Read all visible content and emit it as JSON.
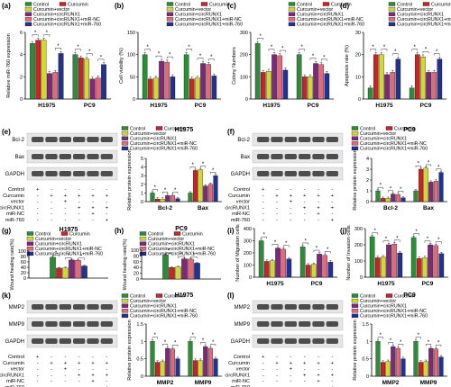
{
  "colors": {
    "Control": "#2e8b3a",
    "Curcumin": "#c0272d",
    "Curcumin+vector": "#cfd83a",
    "Curcumin+circRUNX1": "#7a2a76",
    "Curcumin+circRUNX1+miR-NC": "#e06a7a",
    "Curcumin+circRUNX1+miR-760": "#23318f"
  },
  "legend_names": [
    "Control",
    "Curcumin",
    "Curcumin+vector",
    "Curcumin+circRUNX1",
    "Curcumin+circRUNX1+miR-NC",
    "Curcumin+circRUNX1+miR-760"
  ],
  "treatment_rows": [
    "Control",
    "Curcumin",
    "vector",
    "circRUNX1",
    "miR-NC",
    "miR-760"
  ],
  "treatment_marks": [
    [
      "+",
      "-",
      "-",
      "-",
      "-",
      "-"
    ],
    [
      "-",
      "+",
      "+",
      "+",
      "+",
      "+"
    ],
    [
      "-",
      "-",
      "+",
      "-",
      "-",
      "-"
    ],
    [
      "-",
      "-",
      "-",
      "+",
      "+",
      "+"
    ],
    [
      "-",
      "-",
      "-",
      "-",
      "+",
      "-"
    ],
    [
      "-",
      "-",
      "-",
      "-",
      "-",
      "+"
    ]
  ],
  "chart_data": [
    {
      "panel": "(a)",
      "type": "bar",
      "title": "",
      "ylabel": "Relative miR-760 expression",
      "xlabel": "",
      "categories": [
        "H1975",
        "PC9"
      ],
      "ylim": [
        0,
        6
      ],
      "yticks": [
        0,
        2,
        4,
        6
      ],
      "series": [
        {
          "name": "Control",
          "values": [
            5.0,
            4.0
          ]
        },
        {
          "name": "Curcumin",
          "values": [
            5.3,
            3.7
          ]
        },
        {
          "name": "Curcumin+vector",
          "values": [
            5.3,
            3.6
          ]
        },
        {
          "name": "Curcumin+circRUNX1",
          "values": [
            2.3,
            1.8
          ]
        },
        {
          "name": "Curcumin+circRUNX1+miR-NC",
          "values": [
            2.4,
            1.9
          ]
        },
        {
          "name": "Curcumin+circRUNX1+miR-760",
          "values": [
            4.1,
            3.1
          ]
        }
      ]
    },
    {
      "panel": "(b)",
      "type": "bar",
      "title": "",
      "ylabel": "Cell viability (%)",
      "xlabel": "",
      "categories": [
        "H1975",
        "PC9"
      ],
      "ylim": [
        0,
        150
      ],
      "yticks": [
        0,
        50,
        100,
        150
      ],
      "series": [
        {
          "name": "Control",
          "values": [
            100,
            100
          ]
        },
        {
          "name": "Curcumin",
          "values": [
            45,
            45
          ]
        },
        {
          "name": "Curcumin+vector",
          "values": [
            47,
            47
          ]
        },
        {
          "name": "Curcumin+circRUNX1",
          "values": [
            85,
            80
          ]
        },
        {
          "name": "Curcumin+circRUNX1+miR-NC",
          "values": [
            83,
            78
          ]
        },
        {
          "name": "Curcumin+circRUNX1+miR-760",
          "values": [
            50,
            52
          ]
        }
      ]
    },
    {
      "panel": "(c)",
      "type": "bar",
      "title": "",
      "ylabel": "Colony Numbers",
      "xlabel": "",
      "categories": [
        "H1975",
        "PC9"
      ],
      "ylim": [
        0,
        300
      ],
      "yticks": [
        0,
        100,
        200,
        300
      ],
      "series": [
        {
          "name": "Control",
          "values": [
            250,
            200
          ]
        },
        {
          "name": "Curcumin",
          "values": [
            120,
            100
          ]
        },
        {
          "name": "Curcumin+vector",
          "values": [
            125,
            100
          ]
        },
        {
          "name": "Curcumin+circRUNX1",
          "values": [
            200,
            160
          ]
        },
        {
          "name": "Curcumin+circRUNX1+miR-NC",
          "values": [
            195,
            155
          ]
        },
        {
          "name": "Curcumin+circRUNX1+miR-760",
          "values": [
            130,
            115
          ]
        }
      ]
    },
    {
      "panel": "(d)",
      "type": "bar",
      "title": "",
      "ylabel": "Apoptosis rate (%)",
      "xlabel": "",
      "categories": [
        "H1975",
        "PC9"
      ],
      "ylim": [
        0,
        30
      ],
      "yticks": [
        0,
        10,
        20,
        30
      ],
      "series": [
        {
          "name": "Control",
          "values": [
            5,
            5
          ]
        },
        {
          "name": "Curcumin",
          "values": [
            20,
            20
          ]
        },
        {
          "name": "Curcumin+vector",
          "values": [
            20,
            19
          ]
        },
        {
          "name": "Curcumin+circRUNX1",
          "values": [
            11,
            12
          ]
        },
        {
          "name": "Curcumin+circRUNX1+miR-NC",
          "values": [
            12,
            12
          ]
        },
        {
          "name": "Curcumin+circRUNX1+miR-760",
          "values": [
            18,
            18
          ]
        }
      ]
    },
    {
      "panel": "(e)",
      "type": "bar",
      "title": "H1975",
      "ylabel": "Relative protein expression",
      "xlabel": "",
      "categories": [
        "Bcl-2",
        "Bax"
      ],
      "ylim": [
        0,
        5
      ],
      "yticks": [
        0,
        1,
        2,
        3,
        4,
        5
      ],
      "series": [
        {
          "name": "Control",
          "values": [
            1.0,
            1.0
          ]
        },
        {
          "name": "Curcumin",
          "values": [
            0.3,
            3.6
          ]
        },
        {
          "name": "Curcumin+vector",
          "values": [
            0.3,
            3.7
          ]
        },
        {
          "name": "Curcumin+circRUNX1",
          "values": [
            0.7,
            1.8
          ]
        },
        {
          "name": "Curcumin+circRUNX1+miR-NC",
          "values": [
            0.7,
            2.0
          ]
        },
        {
          "name": "Curcumin+circRUNX1+miR-760",
          "values": [
            0.35,
            3.0
          ]
        }
      ]
    },
    {
      "panel": "(f)",
      "type": "bar",
      "title": "PC9",
      "ylabel": "Relative protein expression",
      "xlabel": "",
      "categories": [
        "Bcl-2",
        "Bax"
      ],
      "ylim": [
        0,
        4
      ],
      "yticks": [
        0,
        1,
        2,
        3,
        4
      ],
      "series": [
        {
          "name": "Control",
          "values": [
            1.0,
            1.0
          ]
        },
        {
          "name": "Curcumin",
          "values": [
            0.3,
            3.0
          ]
        },
        {
          "name": "Curcumin+vector",
          "values": [
            0.3,
            3.1
          ]
        },
        {
          "name": "Curcumin+circRUNX1",
          "values": [
            0.7,
            1.8
          ]
        },
        {
          "name": "Curcumin+circRUNX1+miR-NC",
          "values": [
            0.65,
            1.9
          ]
        },
        {
          "name": "Curcumin+circRUNX1+miR-760",
          "values": [
            0.35,
            2.7
          ]
        }
      ]
    },
    {
      "panel": "(g)",
      "type": "bar",
      "title": "H1975",
      "ylabel": "Wound healing rate(%)",
      "xlabel": "",
      "categories": [
        ""
      ],
      "ylim": [
        0,
        100
      ],
      "yticks": [
        0,
        20,
        40,
        60,
        80,
        100
      ],
      "series": [
        {
          "name": "Control",
          "values": [
            77
          ]
        },
        {
          "name": "Curcumin",
          "values": [
            37
          ]
        },
        {
          "name": "Curcumin+vector",
          "values": [
            38
          ]
        },
        {
          "name": "Curcumin+circRUNX1",
          "values": [
            67
          ]
        },
        {
          "name": "Curcumin+circRUNX1+miR-NC",
          "values": [
            66
          ]
        },
        {
          "name": "Curcumin+circRUNX1+miR-760",
          "values": [
            45
          ]
        }
      ]
    },
    {
      "panel": "(h)",
      "type": "bar",
      "title": "PC9",
      "ylabel": "Wound healing rate(%)",
      "xlabel": "",
      "categories": [
        ""
      ],
      "ylim": [
        0,
        100
      ],
      "yticks": [
        0,
        20,
        40,
        60,
        80,
        100
      ],
      "series": [
        {
          "name": "Control",
          "values": [
            83
          ]
        },
        {
          "name": "Curcumin",
          "values": [
            40
          ]
        },
        {
          "name": "Curcumin+vector",
          "values": [
            42
          ]
        },
        {
          "name": "Curcumin+circRUNX1",
          "values": [
            70
          ]
        },
        {
          "name": "Curcumin+circRUNX1+miR-NC",
          "values": [
            69
          ]
        },
        {
          "name": "Curcumin+circRUNX1+miR-760",
          "values": [
            55
          ]
        }
      ]
    },
    {
      "panel": "(i)",
      "type": "bar",
      "title": "",
      "ylabel": "Number of Migration cells",
      "xlabel": "",
      "categories": [
        "H1975",
        "PC9"
      ],
      "ylim": [
        0,
        400
      ],
      "yticks": [
        0,
        100,
        200,
        300,
        400
      ],
      "series": [
        {
          "name": "Control",
          "values": [
            300,
            250
          ]
        },
        {
          "name": "Curcumin",
          "values": [
            130,
            100
          ]
        },
        {
          "name": "Curcumin+vector",
          "values": [
            135,
            105
          ]
        },
        {
          "name": "Curcumin+circRUNX1",
          "values": [
            240,
            190
          ]
        },
        {
          "name": "Curcumin+circRUNX1+miR-NC",
          "values": [
            230,
            180
          ]
        },
        {
          "name": "Curcumin+circRUNX1+miR-760",
          "values": [
            150,
            125
          ]
        }
      ]
    },
    {
      "panel": "(j)",
      "type": "bar",
      "title": "",
      "ylabel": "Number of Invasion cells",
      "xlabel": "",
      "categories": [
        "H1975",
        "PC9"
      ],
      "ylim": [
        0,
        300
      ],
      "yticks": [
        0,
        100,
        200,
        300
      ],
      "series": [
        {
          "name": "Control",
          "values": [
            250,
            245
          ]
        },
        {
          "name": "Curcumin",
          "values": [
            120,
            115
          ]
        },
        {
          "name": "Curcumin+vector",
          "values": [
            125,
            120
          ]
        },
        {
          "name": "Curcumin+circRUNX1",
          "values": [
            200,
            200
          ]
        },
        {
          "name": "Curcumin+circRUNX1+miR-NC",
          "values": [
            205,
            195
          ]
        },
        {
          "name": "Curcumin+circRUNX1+miR-760",
          "values": [
            150,
            145
          ]
        }
      ]
    },
    {
      "panel": "(k)",
      "type": "bar",
      "title": "H1975",
      "ylabel": "Relative protein expression",
      "xlabel": "",
      "categories": [
        "MMP2",
        "MMP9"
      ],
      "ylim": [
        0,
        1.5
      ],
      "yticks": [
        0,
        0.5,
        1.0,
        1.5
      ],
      "series": [
        {
          "name": "Control",
          "values": [
            1.0,
            1.0
          ]
        },
        {
          "name": "Curcumin",
          "values": [
            0.4,
            0.45
          ]
        },
        {
          "name": "Curcumin+vector",
          "values": [
            0.42,
            0.45
          ]
        },
        {
          "name": "Curcumin+circRUNX1",
          "values": [
            0.8,
            0.85
          ]
        },
        {
          "name": "Curcumin+circRUNX1+miR-NC",
          "values": [
            0.78,
            0.8
          ]
        },
        {
          "name": "Curcumin+circRUNX1+miR-760",
          "values": [
            0.5,
            0.5
          ]
        }
      ]
    },
    {
      "panel": "(l)",
      "type": "bar",
      "title": "PC9",
      "ylabel": "Relative protein expression",
      "xlabel": "",
      "categories": [
        "MMP2",
        "MMP9"
      ],
      "ylim": [
        0,
        1.5
      ],
      "yticks": [
        0,
        0.5,
        1.0,
        1.5
      ],
      "series": [
        {
          "name": "Control",
          "values": [
            1.0,
            1.0
          ]
        },
        {
          "name": "Curcumin",
          "values": [
            0.4,
            0.4
          ]
        },
        {
          "name": "Curcumin+vector",
          "values": [
            0.42,
            0.42
          ]
        },
        {
          "name": "Curcumin+circRUNX1",
          "values": [
            0.85,
            0.8
          ]
        },
        {
          "name": "Curcumin+circRUNX1+miR-NC",
          "values": [
            0.8,
            0.78
          ]
        },
        {
          "name": "Curcumin+circRUNX1+miR-760",
          "values": [
            0.5,
            0.55
          ]
        }
      ]
    }
  ],
  "blots": [
    {
      "panel": "(e)",
      "bands": [
        "Bcl-2",
        "Bax",
        "GAPDH"
      ],
      "show_treatments": true
    },
    {
      "panel": "(f)",
      "bands": [
        "Bcl-2",
        "Bax",
        "GAPDH"
      ],
      "show_treatments": true
    },
    {
      "panel": "(k)",
      "bands": [
        "MMP2",
        "MMP9",
        "GAPDH"
      ],
      "show_treatments": true
    },
    {
      "panel": "(l)",
      "bands": [
        "MMP2",
        "MMP9",
        "GAPDH"
      ],
      "show_treatments": true
    }
  ]
}
